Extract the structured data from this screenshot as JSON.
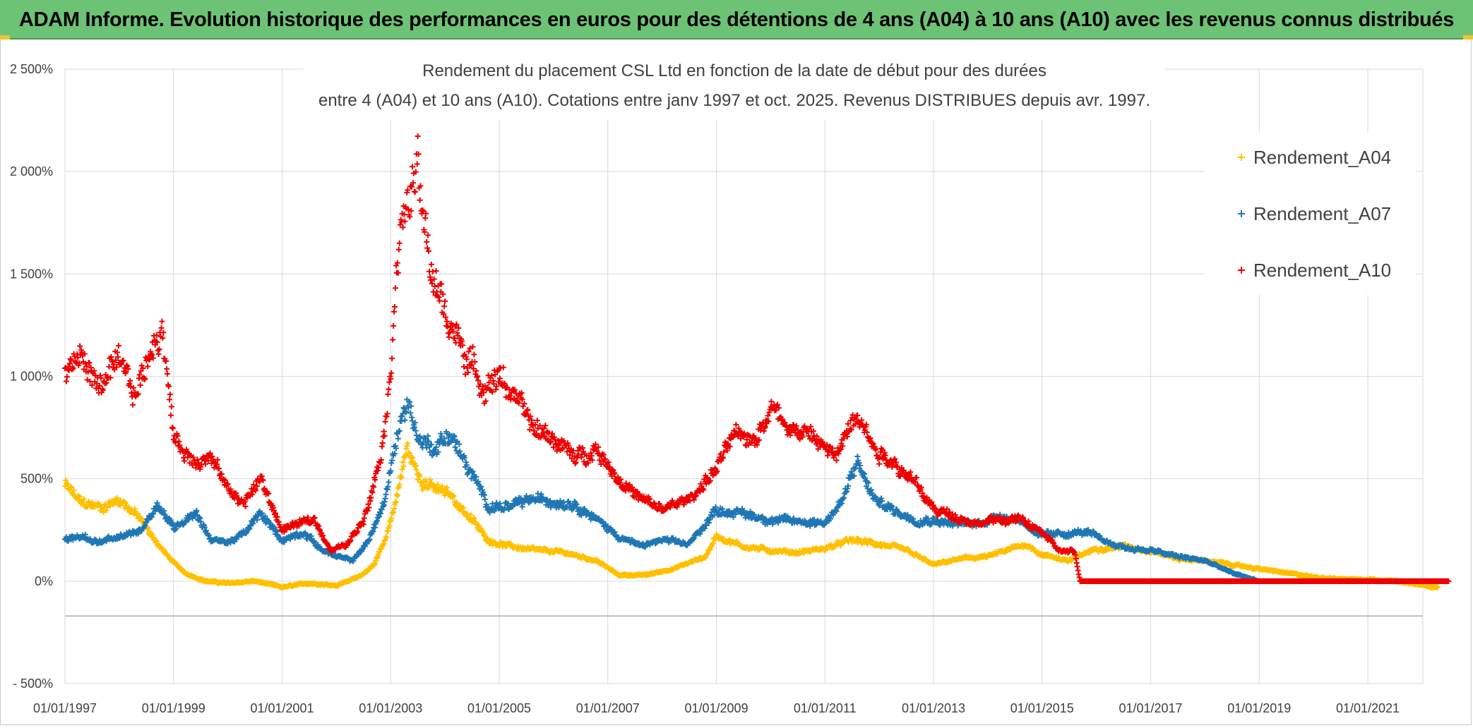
{
  "banner": {
    "title": "ADAM Informe. Evolution historique des performances en euros pour des détentions de 4 ans (A04) à 10 ans (A10) avec les revenus connus distribués"
  },
  "colors": {
    "banner_bg": "#6dc375",
    "a04": "#ffc000",
    "a07": "#1f77b4",
    "a10": "#ee0000",
    "grid": "#d9d9d9",
    "zero_line": "#bfbfbf"
  },
  "chart_data": {
    "type": "scatter",
    "title_lines": [
      "Rendement du placement CSL Ltd en fonction de la date de début pour des durées",
      "entre 4 (A04) et 10 ans (A10). Cotations entre janv 1997 et oct. 2025. Revenus DISTRIBUES depuis avr. 1997."
    ],
    "xlabel": "",
    "ylabel": "",
    "xlim": [
      1997.0,
      2022.5
    ],
    "ylim": [
      -500,
      2500
    ],
    "x_ticks": [
      1997,
      1999,
      2001,
      2003,
      2005,
      2007,
      2009,
      2011,
      2013,
      2015,
      2017,
      2019,
      2021
    ],
    "x_tick_labels": [
      "01/01/1997",
      "01/01/1999",
      "01/01/2001",
      "01/01/2003",
      "01/01/2005",
      "01/01/2007",
      "01/01/2009",
      "01/01/2011",
      "01/01/2013",
      "01/01/2015",
      "01/01/2017",
      "01/01/2019",
      "01/01/2021"
    ],
    "y_ticks": [
      -500,
      0,
      500,
      1000,
      1500,
      2000,
      2500
    ],
    "y_tick_labels": [
      "- 500%",
      "0%",
      "500%",
      "1 000%",
      "1 500%",
      "2 000%",
      "2 500%"
    ],
    "extra_hline": -170,
    "marker": "+",
    "legend": {
      "position": "top-right"
    },
    "series": [
      {
        "name": "Rendement_A04",
        "color": "#ffc000",
        "anchors": [
          [
            1997.0,
            470
          ],
          [
            1997.3,
            380
          ],
          [
            1997.7,
            360
          ],
          [
            1998.0,
            400
          ],
          [
            1998.3,
            330
          ],
          [
            1998.6,
            220
          ],
          [
            1998.9,
            120
          ],
          [
            1999.2,
            40
          ],
          [
            1999.6,
            0
          ],
          [
            2000.0,
            -10
          ],
          [
            2000.5,
            0
          ],
          [
            2001.0,
            -30
          ],
          [
            2001.5,
            -10
          ],
          [
            2002.0,
            -20
          ],
          [
            2002.4,
            20
          ],
          [
            2002.7,
            80
          ],
          [
            2002.9,
            200
          ],
          [
            2003.1,
            400
          ],
          [
            2003.3,
            650
          ],
          [
            2003.5,
            520
          ],
          [
            2003.8,
            450
          ],
          [
            2004.1,
            420
          ],
          [
            2004.4,
            330
          ],
          [
            2004.8,
            200
          ],
          [
            2005.2,
            170
          ],
          [
            2005.7,
            150
          ],
          [
            2006.2,
            140
          ],
          [
            2006.8,
            100
          ],
          [
            2007.2,
            30
          ],
          [
            2007.7,
            30
          ],
          [
            2008.2,
            60
          ],
          [
            2008.8,
            120
          ],
          [
            2009.0,
            220
          ],
          [
            2009.5,
            170
          ],
          [
            2010.0,
            150
          ],
          [
            2010.5,
            140
          ],
          [
            2011.0,
            160
          ],
          [
            2011.5,
            200
          ],
          [
            2012.0,
            180
          ],
          [
            2012.5,
            150
          ],
          [
            2013.0,
            80
          ],
          [
            2013.5,
            110
          ],
          [
            2014.0,
            120
          ],
          [
            2014.7,
            180
          ],
          [
            2015.0,
            130
          ],
          [
            2015.5,
            100
          ],
          [
            2016.0,
            160
          ],
          [
            2016.5,
            170
          ],
          [
            2017.0,
            150
          ],
          [
            2017.5,
            110
          ],
          [
            2018.0,
            100
          ],
          [
            2018.5,
            80
          ],
          [
            2019.0,
            60
          ],
          [
            2019.5,
            40
          ],
          [
            2020.0,
            20
          ],
          [
            2020.5,
            10
          ],
          [
            2021.0,
            10
          ],
          [
            2021.5,
            0
          ],
          [
            2022.0,
            -20
          ],
          [
            2022.3,
            -30
          ]
        ]
      },
      {
        "name": "Rendement_A07",
        "color": "#1f77b4",
        "anchors": [
          [
            1997.0,
            200
          ],
          [
            1997.3,
            220
          ],
          [
            1997.6,
            190
          ],
          [
            1998.0,
            210
          ],
          [
            1998.4,
            250
          ],
          [
            1998.7,
            380
          ],
          [
            1999.0,
            260
          ],
          [
            1999.4,
            340
          ],
          [
            1999.7,
            200
          ],
          [
            2000.0,
            190
          ],
          [
            2000.3,
            230
          ],
          [
            2000.6,
            330
          ],
          [
            2001.0,
            200
          ],
          [
            2001.4,
            240
          ],
          [
            2001.7,
            160
          ],
          [
            2002.0,
            120
          ],
          [
            2002.3,
            100
          ],
          [
            2002.6,
            200
          ],
          [
            2002.9,
            400
          ],
          [
            2003.1,
            680
          ],
          [
            2003.3,
            900
          ],
          [
            2003.5,
            700
          ],
          [
            2003.8,
            650
          ],
          [
            2004.1,
            720
          ],
          [
            2004.4,
            560
          ],
          [
            2004.8,
            370
          ],
          [
            2005.2,
            360
          ],
          [
            2005.6,
            400
          ],
          [
            2006.0,
            390
          ],
          [
            2006.4,
            380
          ],
          [
            2006.8,
            300
          ],
          [
            2007.2,
            220
          ],
          [
            2007.6,
            170
          ],
          [
            2008.0,
            200
          ],
          [
            2008.5,
            180
          ],
          [
            2009.0,
            350
          ],
          [
            2009.5,
            330
          ],
          [
            2010.0,
            300
          ],
          [
            2010.5,
            290
          ],
          [
            2011.0,
            290
          ],
          [
            2011.3,
            380
          ],
          [
            2011.6,
            580
          ],
          [
            2011.9,
            400
          ],
          [
            2012.3,
            340
          ],
          [
            2012.7,
            300
          ],
          [
            2013.0,
            300
          ],
          [
            2013.4,
            280
          ],
          [
            2013.8,
            280
          ],
          [
            2014.2,
            320
          ],
          [
            2014.6,
            300
          ],
          [
            2015.0,
            220
          ],
          [
            2015.4,
            230
          ],
          [
            2015.8,
            240
          ],
          [
            2016.2,
            190
          ],
          [
            2016.6,
            160
          ],
          [
            2017.0,
            150
          ],
          [
            2017.5,
            120
          ],
          [
            2018.0,
            100
          ],
          [
            2018.5,
            40
          ],
          [
            2019.0,
            0
          ]
        ]
      },
      {
        "name": "Rendement_A10",
        "color": "#ee0000",
        "anchors": [
          [
            1997.0,
            1000
          ],
          [
            1997.3,
            1100
          ],
          [
            1997.6,
            950
          ],
          [
            1998.0,
            1050
          ],
          [
            1998.3,
            900
          ],
          [
            1998.6,
            1150
          ],
          [
            1998.8,
            1250
          ],
          [
            1999.0,
            700
          ],
          [
            1999.3,
            600
          ],
          [
            1999.7,
            600
          ],
          [
            2000.0,
            450
          ],
          [
            2000.3,
            380
          ],
          [
            2000.6,
            500
          ],
          [
            2001.0,
            250
          ],
          [
            2001.3,
            280
          ],
          [
            2001.6,
            300
          ],
          [
            2001.9,
            150
          ],
          [
            2002.2,
            180
          ],
          [
            2002.5,
            300
          ],
          [
            2002.8,
            600
          ],
          [
            2003.0,
            1000
          ],
          [
            2003.1,
            1600
          ],
          [
            2003.3,
            1850
          ],
          [
            2003.5,
            2000
          ],
          [
            2003.6,
            1750
          ],
          [
            2003.8,
            1450
          ],
          [
            2004.1,
            1250
          ],
          [
            2004.4,
            1100
          ],
          [
            2004.7,
            950
          ],
          [
            2005.0,
            1000
          ],
          [
            2005.3,
            900
          ],
          [
            2005.6,
            750
          ],
          [
            2006.0,
            700
          ],
          [
            2006.4,
            600
          ],
          [
            2006.8,
            650
          ],
          [
            2007.2,
            500
          ],
          [
            2007.6,
            400
          ],
          [
            2008.0,
            350
          ],
          [
            2008.5,
            400
          ],
          [
            2009.0,
            550
          ],
          [
            2009.3,
            700
          ],
          [
            2009.7,
            700
          ],
          [
            2010.0,
            850
          ],
          [
            2010.4,
            750
          ],
          [
            2010.8,
            700
          ],
          [
            2011.2,
            600
          ],
          [
            2011.6,
            850
          ],
          [
            2011.9,
            650
          ],
          [
            2012.2,
            600
          ],
          [
            2012.6,
            500
          ],
          [
            2013.0,
            350
          ],
          [
            2013.4,
            320
          ],
          [
            2013.8,
            280
          ],
          [
            2014.2,
            300
          ],
          [
            2014.6,
            300
          ],
          [
            2015.0,
            240
          ],
          [
            2015.3,
            150
          ],
          [
            2015.6,
            140
          ],
          [
            2015.7,
            0
          ],
          [
            2022.5,
            0
          ]
        ]
      }
    ]
  }
}
